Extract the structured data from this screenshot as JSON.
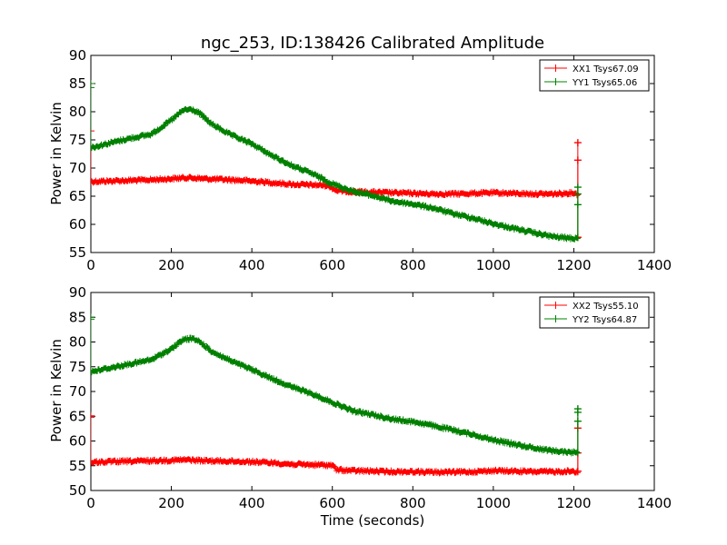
{
  "colors": {
    "red": "#ff0000",
    "green": "#008000"
  },
  "chart_data": [
    {
      "type": "line",
      "title": "ngc_253, ID:138426 Calibrated Amplitude",
      "xlabel": "",
      "ylabel": "Power in Kelvin",
      "xlim": [
        0,
        1400
      ],
      "ylim": [
        55,
        90
      ],
      "xticks": [
        0,
        200,
        400,
        600,
        800,
        1000,
        1200,
        1400
      ],
      "yticks": [
        55,
        60,
        65,
        70,
        75,
        80,
        85,
        90
      ],
      "legend_position": "top-right",
      "series": [
        {
          "name": "XX1 Tsys67.09",
          "color": "#ff0000",
          "x": [
            0,
            50,
            100,
            150,
            200,
            240,
            280,
            350,
            400,
            450,
            500,
            550,
            590,
            610,
            650,
            700,
            750,
            800,
            850,
            900,
            950,
            1000,
            1050,
            1100,
            1150,
            1200,
            1210
          ],
          "y": [
            67.6,
            67.7,
            67.8,
            67.9,
            68.1,
            68.3,
            68.1,
            67.9,
            67.7,
            67.4,
            67.1,
            67.0,
            66.9,
            66.0,
            65.8,
            65.7,
            65.6,
            65.5,
            65.4,
            65.4,
            65.5,
            65.6,
            65.5,
            65.4,
            65.4,
            65.6,
            65.3
          ],
          "end_spikes": {
            "start": [
              73.6,
              76.6
            ],
            "end": [
              57.7,
              71.4,
              74.5
            ]
          }
        },
        {
          "name": "YY1 Tsys65.06",
          "color": "#008000",
          "x": [
            0,
            50,
            100,
            150,
            200,
            230,
            250,
            270,
            300,
            350,
            400,
            450,
            500,
            550,
            600,
            650,
            700,
            750,
            800,
            850,
            900,
            950,
            1000,
            1050,
            1100,
            1150,
            1200,
            1210
          ],
          "y": [
            73.6,
            74.5,
            75.3,
            76.0,
            78.5,
            80.3,
            80.4,
            79.7,
            77.8,
            75.8,
            74.3,
            72.2,
            70.4,
            69.0,
            67.2,
            65.9,
            65.1,
            64.1,
            63.6,
            62.9,
            61.9,
            61.1,
            60.1,
            59.3,
            58.5,
            57.8,
            57.5,
            57.6
          ],
          "end_spikes": {
            "start": [
              85.0,
              84.3
            ],
            "end": [
              63.5,
              65.4,
              66.6
            ]
          }
        }
      ]
    },
    {
      "type": "line",
      "title": "",
      "xlabel": "Time (seconds)",
      "ylabel": "Power in Kelvin",
      "xlim": [
        0,
        1400
      ],
      "ylim": [
        50,
        90
      ],
      "xticks": [
        0,
        200,
        400,
        600,
        800,
        1000,
        1200,
        1400
      ],
      "yticks": [
        50,
        55,
        60,
        65,
        70,
        75,
        80,
        85,
        90
      ],
      "legend_position": "top-right",
      "series": [
        {
          "name": "XX2 Tsys55.10",
          "color": "#ff0000",
          "x": [
            0,
            50,
            100,
            150,
            200,
            240,
            280,
            350,
            400,
            450,
            500,
            550,
            600,
            610,
            650,
            700,
            750,
            800,
            850,
            900,
            950,
            1000,
            1050,
            1100,
            1150,
            1200,
            1210
          ],
          "y": [
            55.7,
            55.8,
            55.9,
            56.0,
            56.1,
            56.2,
            56.0,
            55.9,
            55.8,
            55.6,
            55.3,
            55.2,
            55.1,
            54.2,
            54.0,
            53.9,
            53.8,
            53.8,
            53.7,
            53.7,
            53.8,
            54.0,
            53.9,
            53.8,
            53.8,
            53.9,
            53.7
          ],
          "end_spikes": {
            "start": [
              64.8,
              65.1
            ],
            "end": [
              53.9,
              62.6,
              57.6
            ]
          }
        },
        {
          "name": "YY2 Tsys64.87",
          "color": "#008000",
          "x": [
            0,
            50,
            100,
            150,
            200,
            230,
            250,
            270,
            300,
            350,
            400,
            450,
            500,
            550,
            600,
            650,
            700,
            750,
            800,
            850,
            900,
            950,
            1000,
            1050,
            1100,
            1150,
            1200,
            1210
          ],
          "y": [
            74.0,
            74.8,
            75.6,
            76.4,
            78.6,
            80.5,
            80.7,
            80.1,
            78.1,
            76.1,
            74.4,
            72.6,
            70.9,
            69.5,
            67.8,
            66.1,
            65.3,
            64.4,
            63.9,
            63.1,
            62.2,
            61.3,
            60.2,
            59.4,
            58.6,
            58.0,
            57.7,
            57.8
          ],
          "end_spikes": {
            "start": [
              85.0,
              84.6
            ],
            "end": [
              64.0,
              65.8,
              66.5
            ]
          }
        }
      ]
    }
  ]
}
